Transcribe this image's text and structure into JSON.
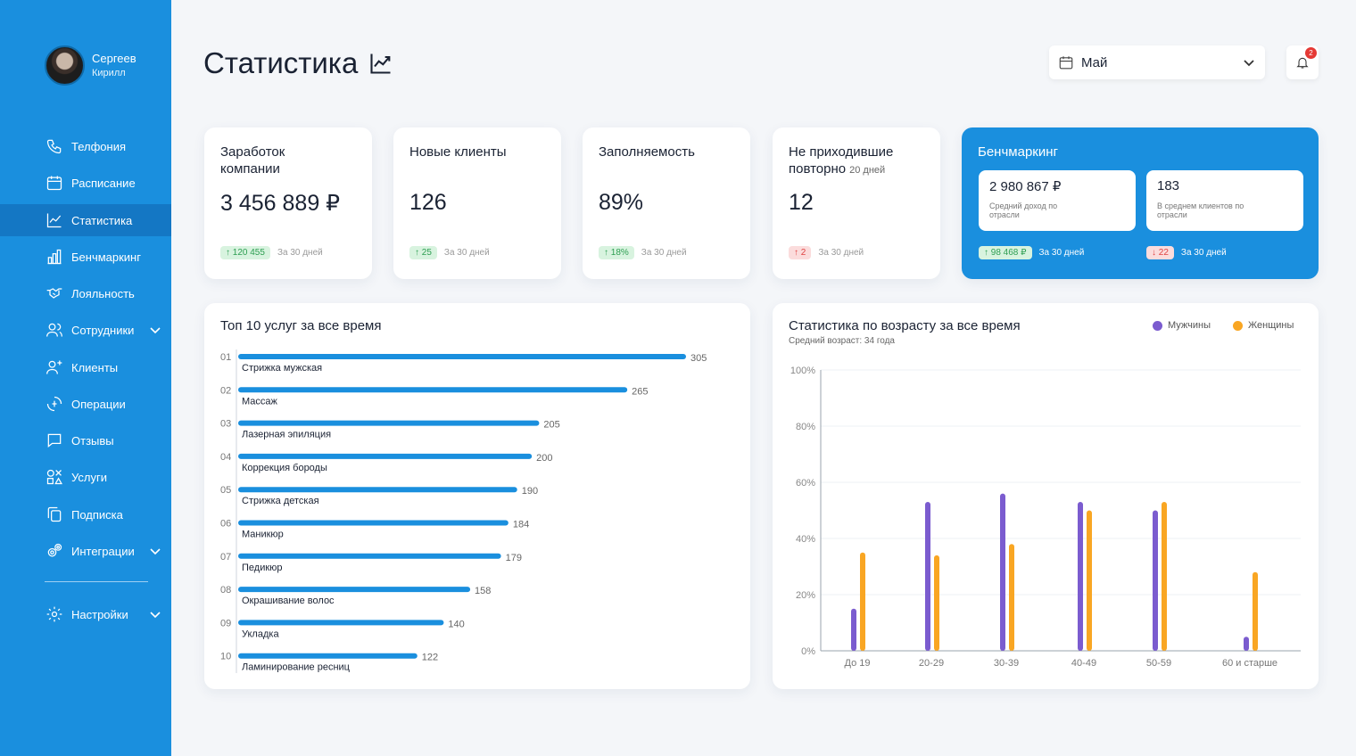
{
  "user": {
    "first": "Сергеев",
    "last": "Кирилл"
  },
  "nav": [
    {
      "label": "Телфония",
      "icon": "phone-icon"
    },
    {
      "label": "Расписание",
      "icon": "calendar-icon"
    },
    {
      "label": "Статистика",
      "icon": "chart-line-icon",
      "active": true
    },
    {
      "label": "Бенчмаркинг",
      "icon": "bar-chart-icon"
    },
    {
      "label": "Лояльность",
      "icon": "handshake-icon"
    },
    {
      "label": "Сотрудники",
      "icon": "users-icon",
      "expandable": true
    },
    {
      "label": "Клиенты",
      "icon": "user-add-icon"
    },
    {
      "label": "Операции",
      "icon": "exchange-icon"
    },
    {
      "label": "Отзывы",
      "icon": "chat-icon"
    },
    {
      "label": "Услуги",
      "icon": "services-icon"
    },
    {
      "label": "Подписка",
      "icon": "copy-icon"
    },
    {
      "label": "Интеграции",
      "icon": "gears-icon",
      "expandable": true
    }
  ],
  "settings": {
    "label": "Настройки",
    "icon": "settings-icon"
  },
  "page": {
    "title": "Статистика"
  },
  "period": {
    "selected": "Май"
  },
  "notifications": {
    "count": "2"
  },
  "cards": {
    "earnings": {
      "title": "Заработок компании",
      "value": "3 456 889 ₽",
      "delta": "↑ 120 455",
      "period": "За 30 дней"
    },
    "new_clients": {
      "title": "Новые клиенты",
      "value": "126",
      "delta": "↑ 25",
      "period": "За 30 дней"
    },
    "occupancy": {
      "title": "Заполняемость",
      "value": "89%",
      "delta": "↑ 18%",
      "period": "За 30 дней"
    },
    "no_return": {
      "title": "Не приходившие повторно",
      "note": "20 дней",
      "value": "12",
      "delta": "↑ 2",
      "period": "За 30 дней"
    },
    "benchmark": {
      "title": "Бенчмаркинг",
      "income_value": "2 980 867 ₽",
      "income_label": "Средний доход по отрасли",
      "clients_value": "183",
      "clients_label": "В среднем клиентов по отрасли",
      "income_delta": "↑ 98 468 ₽",
      "clients_delta": "↓ 22",
      "period": "За 30 дней"
    }
  },
  "colors": {
    "primary": "#1a8fde",
    "men": "#7b5ccf",
    "women": "#f9a623",
    "bar": "#1a8fde"
  },
  "chart_data": [
    {
      "type": "bar",
      "orientation": "horizontal",
      "title": "Топ 10 услуг за все время",
      "ranks": [
        "01",
        "02",
        "03",
        "04",
        "05",
        "06",
        "07",
        "08",
        "09",
        "10"
      ],
      "categories": [
        "Стрижка мужская",
        "Массаж",
        "Лазерная эпиляция",
        "Коррекция бороды",
        "Стрижка детская",
        "Маникюр",
        "Педикюр",
        "Окрашивание волос",
        "Укладка",
        "Ламинирование ресниц"
      ],
      "values": [
        305,
        265,
        205,
        200,
        190,
        184,
        179,
        158,
        140,
        122
      ]
    },
    {
      "type": "bar",
      "title": "Статистика по возрасту за все время",
      "subtitle": "Средний возраст: 34 года",
      "categories": [
        "До 19",
        "20-29",
        "30-39",
        "40-49",
        "50-59",
        "60 и старше"
      ],
      "series": [
        {
          "name": "Мужчины",
          "values": [
            15,
            53,
            56,
            53,
            50,
            5
          ]
        },
        {
          "name": "Женщины",
          "values": [
            35,
            34,
            38,
            50,
            53,
            28
          ]
        }
      ],
      "ylim": [
        0,
        100
      ],
      "yticks": [
        "0%",
        "20%",
        "40%",
        "60%",
        "80%",
        "100%"
      ],
      "grid": true,
      "legend": "top-right"
    }
  ]
}
